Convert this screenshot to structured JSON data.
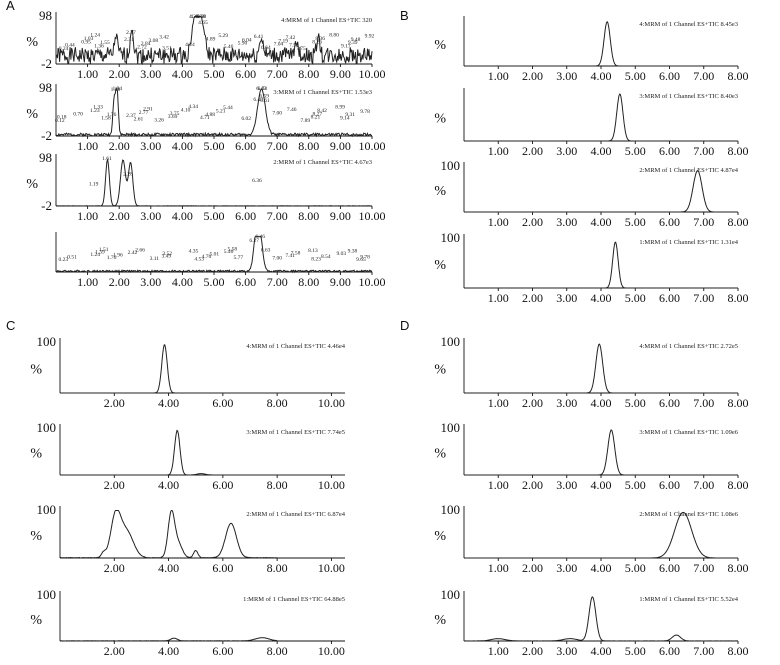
{
  "chart_data": [
    {
      "panel": "A",
      "type": "line",
      "x_tick_labels": [
        "1.00",
        "2.00",
        "3.00",
        "4.00",
        "5.00",
        "6.00",
        "7.00",
        "8.00",
        "9.00",
        "10.00"
      ],
      "xlim": [
        0,
        10
      ],
      "traces": [
        {
          "label": "4:MRM of 1 Channel ES+TIC 320",
          "y_top": "98",
          "y_pct": "%",
          "y_bottom": "-2",
          "noise": 0.35,
          "peaks": [
            [
              4.4,
              0.95,
              0.1
            ],
            [
              4.6,
              0.85,
              0.1
            ],
            [
              2.4,
              0.7,
              0.05
            ],
            [
              1.9,
              0.5,
              0.05
            ],
            [
              6.5,
              0.45,
              0.06
            ],
            [
              8.3,
              0.5,
              0.05
            ],
            [
              7.6,
              0.4,
              0.05
            ]
          ],
          "peak_labels": [
            "0.24",
            "0.44",
            "0.95",
            "1.03",
            "1.24",
            "1.36",
            "1.55",
            "2.31",
            "2.37",
            "2.72",
            "2.84",
            "3.08",
            "3.42",
            "3.51",
            "4.24",
            "4.40",
            "4.36",
            "4.58",
            "4.60",
            "4.65",
            "4.89",
            "5.29",
            "5.46",
            "5.90",
            "6.04",
            "6.41",
            "6.64",
            "7.04",
            "7.19",
            "7.42",
            "7.75",
            "7.53",
            "8.26",
            "8.36",
            "8.80",
            "9.17",
            "9.39",
            "9.48",
            "9.92"
          ]
        },
        {
          "label": "3:MRM of 1 Channel ES+TIC 1.53e3",
          "y_top": "98",
          "y_pct": "%",
          "y_bottom": "-2",
          "noise": 0.06,
          "peaks": [
            [
              1.93,
              0.97,
              0.04
            ],
            [
              1.84,
              0.75,
              0.04
            ],
            [
              6.48,
              0.55,
              0.12
            ],
            [
              6.53,
              0.45,
              0.12
            ]
          ],
          "peak_labels": [
            "0.12",
            "0.18",
            "0.70",
            "1.23",
            "1.33",
            "1.58",
            "1.76",
            "1.88",
            "1.94",
            "2.61",
            "2.37",
            "2.77",
            "2.91",
            "3.26",
            "3.69",
            "3.75",
            "4.10",
            "4.34",
            "4.71",
            "4.88",
            "5.21",
            "5.44",
            "6.02",
            "6.40",
            "6.49",
            "6.53",
            "6.59",
            "6.61",
            "7.00",
            "7.46",
            "7.89",
            "8.21",
            "8.27",
            "8.42",
            "8.99",
            "9.14",
            "9.31",
            "9.78"
          ]
        },
        {
          "label": "2:MRM of 1 Channel ES+TIC 4.67e3",
          "y_top": "98",
          "y_pct": "%",
          "y_bottom": "-2",
          "noise": 0.004,
          "peaks": [
            [
              1.63,
              0.97,
              0.06
            ],
            [
              2.12,
              0.96,
              0.08
            ],
            [
              2.36,
              0.9,
              0.07
            ]
          ],
          "peak_labels": [
            "1.61",
            "2.28",
            "1.19",
            "6.36"
          ]
        },
        {
          "label": "",
          "y_top": "",
          "y_pct": "",
          "y_bottom": "",
          "noise": 0.05,
          "peaks": [
            [
              6.33,
              0.95,
              0.08
            ],
            [
              6.46,
              0.95,
              0.08
            ]
          ],
          "peak_labels": [
            "0.23",
            "0.51",
            "1.24",
            "1.39",
            "1.51",
            "1.76",
            "1.96",
            "2.42",
            "2.66",
            "3.11",
            "3.49",
            "3.52",
            "4.35",
            "4.53",
            "4.76",
            "5.01",
            "5.46",
            "5.58",
            "5.77",
            "6.27",
            "6.46",
            "6.63",
            "7.00",
            "7.41",
            "7.58",
            "8.13",
            "8.23",
            "8.54",
            "9.03",
            "9.38",
            "9.65",
            "9.78"
          ]
        }
      ]
    },
    {
      "panel": "B",
      "type": "line",
      "x_tick_labels": [
        "1.00",
        "2.00",
        "3.00",
        "4.00",
        "5.00",
        "6.00",
        "7.00",
        "8.00"
      ],
      "xlim": [
        0,
        8
      ],
      "traces": [
        {
          "label": "4:MRM of 1 Channel ES+TIC 8.45e3",
          "y_top": "",
          "y_pct": "%",
          "y_bottom": "",
          "noise": 0,
          "peaks": [
            [
              4.18,
              0.96,
              0.09
            ]
          ]
        },
        {
          "label": "3:MRM of 1 Channel ES+TIC 8.40e3",
          "y_top": "",
          "y_pct": "%",
          "y_bottom": "",
          "noise": 0,
          "peaks": [
            [
              4.55,
              0.96,
              0.09
            ]
          ]
        },
        {
          "label": "2:MRM of 1 Channel ES+TIC 4.87e4",
          "y_top": "100",
          "y_pct": "%",
          "y_bottom": "",
          "noise": 0,
          "peaks": [
            [
              6.82,
              0.9,
              0.13
            ]
          ]
        },
        {
          "label": "1:MRM of 1 Channel ES+TIC 1.31e4",
          "y_top": "100",
          "y_pct": "%",
          "y_bottom": "",
          "noise": 0,
          "peaks": [
            [
              4.42,
              0.92,
              0.08
            ]
          ]
        }
      ]
    },
    {
      "panel": "C",
      "type": "line",
      "x_tick_labels": [
        "2.00",
        "4.00",
        "6.00",
        "8.00",
        "10.00"
      ],
      "xlim": [
        0,
        10.5
      ],
      "traces": [
        {
          "label": "4:MRM of 1 Channel ES+TIC 4.46e4",
          "y_top": "100",
          "y_pct": "%",
          "y_bottom": "",
          "noise": 0,
          "peaks": [
            [
              3.85,
              0.95,
              0.1
            ]
          ]
        },
        {
          "label": "3:MRM of 1 Channel ES+TIC 7.74e5",
          "y_top": "100",
          "y_pct": "%",
          "y_bottom": "",
          "noise": 0,
          "peaks": [
            [
              4.32,
              0.95,
              0.1
            ],
            [
              5.2,
              0.03,
              0.15
            ]
          ]
        },
        {
          "label": "2:MRM of 1 Channel ES+TIC 6.87e4",
          "y_top": "100",
          "y_pct": "%",
          "y_bottom": "",
          "noise": 0.01,
          "peaks": [
            [
              2.05,
              0.85,
              0.18
            ],
            [
              2.45,
              0.55,
              0.25
            ],
            [
              1.6,
              0.1,
              0.08
            ],
            [
              4.1,
              0.92,
              0.12
            ],
            [
              4.35,
              0.3,
              0.15
            ],
            [
              5.0,
              0.15,
              0.08
            ],
            [
              6.3,
              0.72,
              0.2
            ]
          ],
          "xmax": 8.0
        },
        {
          "label": "1:MRM of 1 Channel ES+TIC 64.88e5",
          "y_top": "100",
          "y_pct": "%",
          "y_bottom": "",
          "noise": 0.005,
          "peaks": [
            [
              4.2,
              0.06,
              0.12
            ],
            [
              7.45,
              0.07,
              0.25
            ]
          ],
          "xmax": 8.0
        }
      ]
    },
    {
      "panel": "D",
      "type": "line",
      "x_tick_labels": [
        "1.00",
        "2.00",
        "3.00",
        "4.00",
        "5.00",
        "6.00",
        "7.00",
        "8.00"
      ],
      "xlim": [
        0,
        8
      ],
      "traces": [
        {
          "label": "4:MRM of 1 Channel ES+TIC 2.72e5",
          "y_top": "100",
          "y_pct": "%",
          "y_bottom": "",
          "noise": 0,
          "peaks": [
            [
              3.95,
              0.96,
              0.1
            ]
          ]
        },
        {
          "label": "3:MRM of 1 Channel ES+TIC 1.09e6",
          "y_top": "100",
          "y_pct": "%",
          "y_bottom": "",
          "noise": 0,
          "peaks": [
            [
              4.3,
              0.96,
              0.1
            ]
          ]
        },
        {
          "label": "2:MRM of 1 Channel ES+TIC 1.08e6",
          "y_top": "100",
          "y_pct": "%",
          "y_bottom": "",
          "noise": 0,
          "peaks": [
            [
              6.4,
              0.95,
              0.25
            ]
          ]
        },
        {
          "label": "1:MRM of 1 Channel ES+TIC 5.52e4",
          "y_top": "100",
          "y_pct": "%",
          "y_bottom": "",
          "noise": 0.003,
          "peaks": [
            [
              3.75,
              0.96,
              0.1
            ],
            [
              1.0,
              0.05,
              0.2
            ],
            [
              3.1,
              0.05,
              0.2
            ],
            [
              6.2,
              0.13,
              0.12
            ]
          ]
        }
      ]
    }
  ]
}
